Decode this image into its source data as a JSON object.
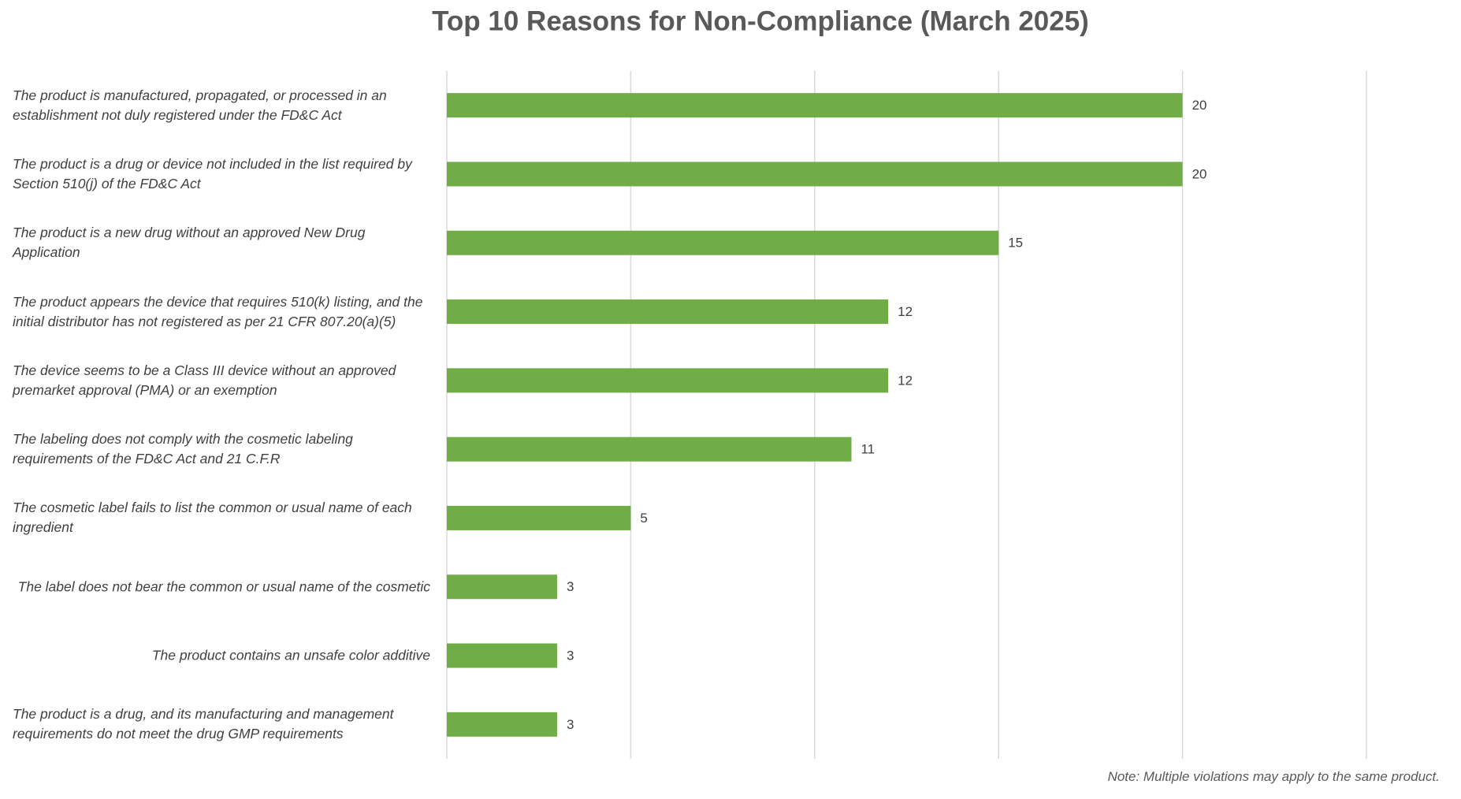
{
  "chart_data": {
    "type": "barh",
    "title": "Top 10 Reasons for Non-Compliance (March 2025)",
    "categories": [
      "The product is manufactured, propagated, or processed in an establishment not duly registered under the FD&C Act",
      "The product is a drug or device not included in the list required by Section 510(j) of the FD&C Act",
      "The product is a new drug without an approved New Drug Application",
      "The product appears the device that requires 510(k) listing, and the initial distributor has not registered as per 21 CFR 807.20(a)(5)",
      "The device seems to be a Class III device without an approved premarket approval (PMA) or an exemption",
      "The labeling does not comply with the cosmetic labeling requirements of the FD&C Act and 21 C.F.R",
      "The cosmetic label fails to list the common or usual name of each ingredient",
      "The label does not bear the common or usual name of the cosmetic",
      "The product contains an unsafe color additive",
      "The product is a drug, and its manufacturing and management requirements do not meet the drug GMP requirements"
    ],
    "values": [
      20,
      20,
      15,
      12,
      12,
      11,
      5,
      3,
      3,
      3
    ],
    "color": "#70ad47",
    "xlim": [
      0,
      25
    ],
    "xticks": [
      0,
      5,
      10,
      15,
      20,
      25
    ],
    "grid": true,
    "note": "Note: Multiple violations may apply to the same product."
  }
}
